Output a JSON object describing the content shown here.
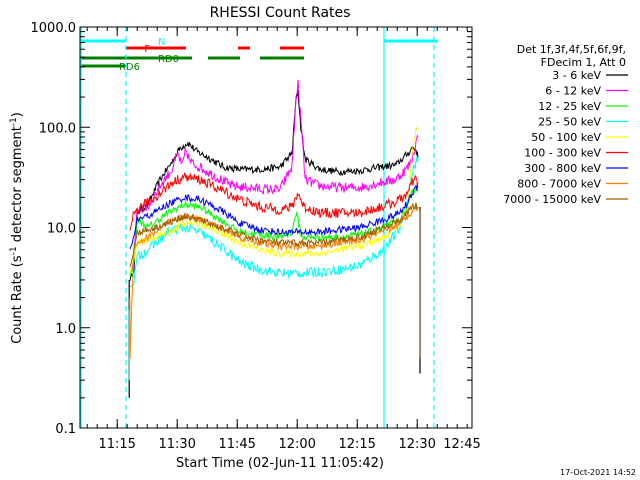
{
  "chart_data": {
    "type": "line",
    "title": "RHESSI Count Rates",
    "xlabel": "Start Time (02-Jun-11 11:05:42)",
    "ylabel": "Count Rate (s⁻¹ detector segment⁻¹)",
    "ylabel_main": "Count Rate (s",
    "ylabel_sup1": "-1",
    "ylabel_mid": " detector segment",
    "ylabel_sup2": "-1",
    "ylabel_end": ")",
    "yscale": "log",
    "ylim": [
      0.1,
      1000.0
    ],
    "xlim_minutes": [
      0,
      98
    ],
    "x_unit": "minutes since 11:05:42",
    "x_ticks": [
      {
        "label": "11:15",
        "value": 9.3
      },
      {
        "label": "11:30",
        "value": 24.3
      },
      {
        "label": "11:45",
        "value": 39.3
      },
      {
        "label": "12:00",
        "value": 54.3
      },
      {
        "label": "12:15",
        "value": 69.3
      },
      {
        "label": "12:30",
        "value": 84.3
      },
      {
        "label": "12:45",
        "value": 99.3
      }
    ],
    "y_ticks": [
      {
        "label": "1000.0",
        "value": 1000
      },
      {
        "label": "100.0",
        "value": 100
      },
      {
        "label": "10.0",
        "value": 10
      },
      {
        "label": "1.0",
        "value": 1
      },
      {
        "label": "0.1",
        "value": 0.1
      }
    ],
    "grid": false,
    "legend_position": "right",
    "legend_header": [
      "Det 1f,3f,4f,5f,6f,9f,",
      "FDecim 1, Att 0"
    ],
    "series": [
      {
        "name": "3 - 6 keV",
        "color": "#000000",
        "points": [
          [
            12.5,
            3
          ],
          [
            13.5,
            4
          ],
          [
            14.3,
            14
          ],
          [
            17,
            17
          ],
          [
            20,
            30
          ],
          [
            23,
            45
          ],
          [
            25,
            62
          ],
          [
            27,
            70
          ],
          [
            29,
            58
          ],
          [
            32,
            50
          ],
          [
            36,
            40
          ],
          [
            40,
            38
          ],
          [
            45,
            38
          ],
          [
            50,
            40
          ],
          [
            53,
            55
          ],
          [
            54,
            190
          ],
          [
            54.5,
            230
          ],
          [
            55.2,
            100
          ],
          [
            56.3,
            48
          ],
          [
            60,
            38
          ],
          [
            65,
            36
          ],
          [
            70,
            37
          ],
          [
            75,
            40
          ],
          [
            79,
            42
          ],
          [
            82,
            55
          ],
          [
            83,
            62
          ],
          [
            84,
            60
          ],
          [
            84.5,
            50
          ]
        ]
      },
      {
        "name": "6 - 12 keV",
        "color": "#ff00ff",
        "points": [
          [
            12.5,
            3.5
          ],
          [
            13.5,
            5
          ],
          [
            14.3,
            15
          ],
          [
            17,
            16
          ],
          [
            20,
            26
          ],
          [
            23,
            38
          ],
          [
            24.5,
            55
          ],
          [
            25.5,
            40
          ],
          [
            26.5,
            60
          ],
          [
            27.5,
            45
          ],
          [
            30,
            40
          ],
          [
            34,
            32
          ],
          [
            38,
            26
          ],
          [
            42,
            25
          ],
          [
            46,
            24
          ],
          [
            50,
            24
          ],
          [
            53,
            40
          ],
          [
            54,
            190
          ],
          [
            54.5,
            270
          ],
          [
            55.2,
            120
          ],
          [
            56.3,
            30
          ],
          [
            60,
            26
          ],
          [
            65,
            25
          ],
          [
            70,
            25
          ],
          [
            75,
            28
          ],
          [
            79,
            30
          ],
          [
            82,
            40
          ],
          [
            83,
            48
          ],
          [
            84,
            70
          ],
          [
            84.5,
            80
          ]
        ]
      },
      {
        "name": "12 - 25 keV",
        "color": "#00ff00",
        "points": [
          [
            12.5,
            3.3
          ],
          [
            13.5,
            4.5
          ],
          [
            14.3,
            12
          ],
          [
            17,
            10
          ],
          [
            22,
            14
          ],
          [
            26,
            17
          ],
          [
            30,
            16
          ],
          [
            35,
            12
          ],
          [
            40,
            9
          ],
          [
            45,
            8.5
          ],
          [
            50,
            8
          ],
          [
            53,
            9
          ],
          [
            54,
            14
          ],
          [
            54.5,
            12
          ],
          [
            55.5,
            8
          ],
          [
            60,
            8
          ],
          [
            65,
            8
          ],
          [
            70,
            8.5
          ],
          [
            76,
            10
          ],
          [
            80,
            12
          ],
          [
            82,
            16
          ],
          [
            83,
            22
          ],
          [
            84,
            25
          ],
          [
            84.5,
            24
          ]
        ]
      },
      {
        "name": "25 - 50 keV",
        "color": "#00ffff",
        "points": [
          [
            12.5,
            2.5
          ],
          [
            13.5,
            3
          ],
          [
            14.3,
            5
          ],
          [
            17,
            6
          ],
          [
            22,
            9
          ],
          [
            26,
            10
          ],
          [
            30,
            9
          ],
          [
            35,
            6.5
          ],
          [
            40,
            4.5
          ],
          [
            45,
            3.8
          ],
          [
            50,
            3.5
          ],
          [
            55,
            3.5
          ],
          [
            60,
            3.6
          ],
          [
            65,
            3.8
          ],
          [
            70,
            4.2
          ],
          [
            76,
            6
          ],
          [
            80,
            10
          ],
          [
            82,
            20
          ],
          [
            83,
            35
          ],
          [
            84,
            45
          ],
          [
            84.5,
            50
          ]
        ]
      },
      {
        "name": "50 - 100 keV",
        "color": "#ffff00",
        "points": [
          [
            12.5,
            3.5
          ],
          [
            13.5,
            5
          ],
          [
            14.3,
            7
          ],
          [
            17,
            7.5
          ],
          [
            22,
            9
          ],
          [
            26,
            11
          ],
          [
            30,
            11
          ],
          [
            35,
            9
          ],
          [
            40,
            7
          ],
          [
            45,
            6
          ],
          [
            50,
            5.5
          ],
          [
            55,
            5.5
          ],
          [
            60,
            5.5
          ],
          [
            65,
            6
          ],
          [
            70,
            6.5
          ],
          [
            76,
            8
          ],
          [
            80,
            11
          ],
          [
            82,
            16
          ],
          [
            83,
            55
          ],
          [
            84,
            90
          ],
          [
            84.5,
            100
          ]
        ]
      },
      {
        "name": "100 - 300 keV",
        "color": "#ff0000",
        "points": [
          [
            12.5,
            9
          ],
          [
            13.5,
            14
          ],
          [
            14.3,
            15
          ],
          [
            17,
            18
          ],
          [
            20,
            22
          ],
          [
            23,
            28
          ],
          [
            26,
            32
          ],
          [
            30,
            30
          ],
          [
            35,
            24
          ],
          [
            40,
            19
          ],
          [
            45,
            16
          ],
          [
            50,
            15
          ],
          [
            53,
            16
          ],
          [
            54,
            20
          ],
          [
            54.5,
            22
          ],
          [
            56,
            16
          ],
          [
            60,
            14
          ],
          [
            65,
            14
          ],
          [
            70,
            14
          ],
          [
            75,
            16
          ],
          [
            79,
            18
          ],
          [
            82,
            22
          ],
          [
            83,
            28
          ],
          [
            84,
            30
          ],
          [
            84.5,
            28
          ]
        ]
      },
      {
        "name": "300 - 800 keV",
        "color": "#0000ff",
        "points": [
          [
            12.5,
            6
          ],
          [
            13.5,
            8
          ],
          [
            14.3,
            12
          ],
          [
            17,
            13
          ],
          [
            22,
            17
          ],
          [
            26,
            20
          ],
          [
            30,
            19
          ],
          [
            35,
            15
          ],
          [
            40,
            11
          ],
          [
            45,
            9.5
          ],
          [
            50,
            9
          ],
          [
            55,
            9
          ],
          [
            60,
            9
          ],
          [
            65,
            9.5
          ],
          [
            70,
            10
          ],
          [
            76,
            12
          ],
          [
            80,
            14
          ],
          [
            82,
            18
          ],
          [
            83,
            22
          ],
          [
            84,
            25
          ],
          [
            84.5,
            25
          ]
        ]
      },
      {
        "name": "800 - 7000 keV",
        "color": "#ff8000",
        "points": [
          [
            12.5,
            0.5
          ],
          [
            13,
            2
          ],
          [
            13.5,
            6
          ],
          [
            14.3,
            7
          ],
          [
            17,
            8
          ],
          [
            22,
            11
          ],
          [
            26,
            13
          ],
          [
            30,
            12
          ],
          [
            35,
            10
          ],
          [
            40,
            8
          ],
          [
            45,
            7
          ],
          [
            50,
            6.5
          ],
          [
            55,
            6.5
          ],
          [
            60,
            6.5
          ],
          [
            65,
            7
          ],
          [
            70,
            7.5
          ],
          [
            76,
            9
          ],
          [
            80,
            11
          ],
          [
            82,
            13
          ],
          [
            83,
            15
          ],
          [
            84,
            16
          ],
          [
            84.5,
            15
          ]
        ]
      },
      {
        "name": "7000 - 15000 keV",
        "color": "#a06000",
        "points": [
          [
            12.5,
            4
          ],
          [
            13.5,
            6
          ],
          [
            14.3,
            9
          ],
          [
            17,
            9.5
          ],
          [
            22,
            11
          ],
          [
            26,
            13
          ],
          [
            30,
            12
          ],
          [
            35,
            10
          ],
          [
            40,
            8.5
          ],
          [
            45,
            7.5
          ],
          [
            50,
            7
          ],
          [
            55,
            7
          ],
          [
            60,
            7
          ],
          [
            65,
            7.5
          ],
          [
            70,
            8
          ],
          [
            76,
            10
          ],
          [
            80,
            12
          ],
          [
            82,
            14
          ],
          [
            83,
            16
          ],
          [
            84,
            17
          ],
          [
            84.5,
            16
          ]
        ]
      }
    ],
    "flag_bars": [
      {
        "label": "N",
        "color": "#00ffff",
        "segments": [
          [
            0,
            11.5
          ],
          [
            76,
            89.5
          ]
        ]
      },
      {
        "label": "F",
        "color": "#ff0000",
        "segments": [
          [
            11.5,
            26.5
          ],
          [
            39.5,
            42.5
          ],
          [
            50,
            56
          ]
        ]
      },
      {
        "label": "RD0",
        "color": "#008000",
        "segments": [
          [
            0,
            11.5
          ],
          [
            11.5,
            28
          ],
          [
            32,
            40
          ],
          [
            45,
            56
          ]
        ]
      },
      {
        "label": "RD6",
        "color": "#008000",
        "segments": [
          [
            0,
            11.5
          ]
        ]
      }
    ],
    "vlines": [
      {
        "x": 0,
        "color": "#00ffff",
        "style": "solid"
      },
      {
        "x": 11.5,
        "color": "#00ffff",
        "style": "dashed"
      },
      {
        "x": 76,
        "color": "#00ffff",
        "style": "solid"
      },
      {
        "x": 88.5,
        "color": "#00ffff",
        "style": "dashed"
      }
    ],
    "spikes": [
      {
        "x": 12.3,
        "ymin": 0.2,
        "ymax": 3,
        "color": "#000000"
      },
      {
        "x": 12.35,
        "ymin": 0.3,
        "ymax": 1.5,
        "color": "#00ffff"
      },
      {
        "x": 12.45,
        "ymin": 0.5,
        "ymax": 2,
        "color": "#ff8000"
      },
      {
        "x": 85,
        "ymin": 0.35,
        "ymax": 16,
        "color": "#000000"
      },
      {
        "x": 84.9,
        "ymin": 0.5,
        "ymax": 15,
        "color": "#ff8000"
      }
    ]
  },
  "footer": {
    "timestamp": "17-Oct-2021 14:52"
  }
}
